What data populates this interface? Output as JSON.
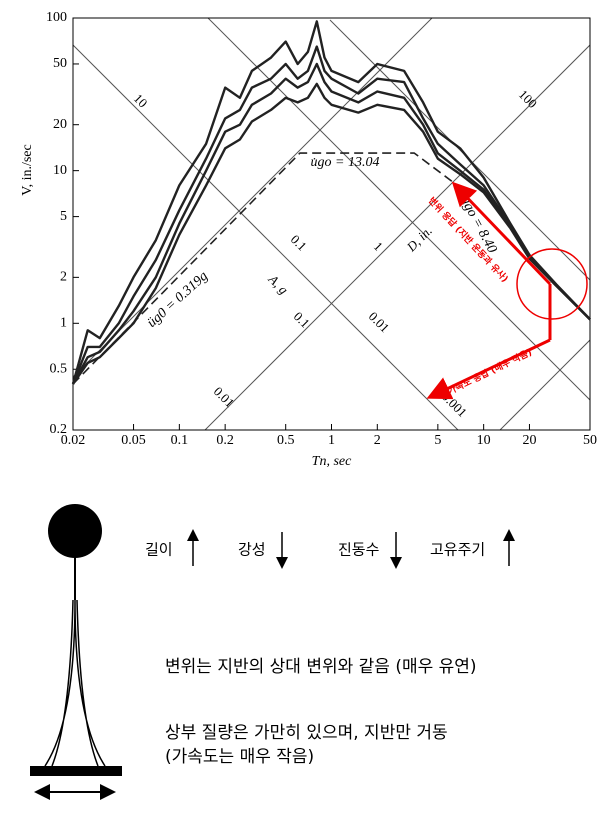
{
  "chart_data": {
    "type": "line",
    "xlog": true,
    "ylog": true,
    "xlabel": "Tn, sec",
    "ylabel": "V, in./sec",
    "xlim": [
      0.02,
      50
    ],
    "ylim": [
      0.2,
      100
    ],
    "xticks": [
      0.02,
      0.05,
      0.1,
      0.2,
      0.5,
      1,
      2,
      5,
      10,
      20,
      50
    ],
    "yticks": [
      0.2,
      0.5,
      1,
      2,
      5,
      10,
      20,
      50,
      100
    ],
    "series": [
      {
        "color": "#222222",
        "line_style": "solid",
        "x": [
          0.02,
          0.025,
          0.03,
          0.04,
          0.05,
          0.07,
          0.1,
          0.15,
          0.2,
          0.25,
          0.3,
          0.4,
          0.5,
          0.6,
          0.7,
          0.8,
          0.9,
          1,
          1.5,
          2,
          3,
          4,
          5,
          7,
          10,
          15,
          20,
          30,
          50
        ],
        "values": [
          0.4,
          0.9,
          0.8,
          1.3,
          2.0,
          3.5,
          8,
          15,
          35,
          30,
          45,
          55,
          70,
          50,
          60,
          95,
          55,
          45,
          38,
          50,
          45,
          28,
          18,
          14,
          9,
          4.5,
          2.8,
          1.8,
          1.06
        ]
      },
      {
        "color": "#222222",
        "line_style": "solid",
        "x": [
          0.02,
          0.025,
          0.03,
          0.04,
          0.05,
          0.07,
          0.1,
          0.15,
          0.2,
          0.25,
          0.3,
          0.4,
          0.5,
          0.6,
          0.7,
          0.8,
          0.9,
          1,
          1.5,
          2,
          3,
          4,
          5,
          7,
          10,
          15,
          20,
          30,
          50
        ],
        "values": [
          0.4,
          0.7,
          0.7,
          1.0,
          1.5,
          2.6,
          5.5,
          12,
          22,
          25,
          35,
          40,
          50,
          40,
          45,
          65,
          45,
          40,
          32,
          40,
          38,
          22,
          15,
          11,
          8,
          4.4,
          2.7,
          1.78,
          1.06
        ]
      },
      {
        "color": "#222222",
        "line_style": "solid",
        "x": [
          0.02,
          0.025,
          0.03,
          0.04,
          0.05,
          0.07,
          0.1,
          0.15,
          0.2,
          0.25,
          0.3,
          0.4,
          0.5,
          0.6,
          0.7,
          0.8,
          0.9,
          1,
          1.5,
          2,
          3,
          4,
          5,
          7,
          10,
          15,
          20,
          30,
          50
        ],
        "values": [
          0.4,
          0.6,
          0.65,
          0.9,
          1.2,
          2.0,
          4.5,
          10,
          18,
          20,
          27,
          32,
          40,
          35,
          38,
          50,
          38,
          33,
          28,
          33,
          30,
          20,
          13,
          10,
          7.5,
          4.3,
          2.7,
          1.77,
          1.06
        ]
      },
      {
        "color": "#222222",
        "line_style": "solid",
        "x": [
          0.02,
          0.025,
          0.03,
          0.04,
          0.05,
          0.07,
          0.1,
          0.15,
          0.2,
          0.25,
          0.3,
          0.4,
          0.5,
          0.6,
          0.7,
          0.8,
          0.9,
          1,
          1.5,
          2,
          3,
          4,
          5,
          7,
          10,
          15,
          20,
          30,
          50
        ],
        "values": [
          0.4,
          0.55,
          0.6,
          0.8,
          1.0,
          1.7,
          3.8,
          8,
          14,
          16,
          21,
          25,
          30,
          28,
          30,
          37,
          30,
          27,
          24,
          27,
          25,
          18,
          12,
          9.5,
          7.2,
          4.2,
          2.65,
          1.76,
          1.06
        ]
      },
      {
        "color": "#222222",
        "line_style": "dashed",
        "x": [
          0.02,
          0.62,
          3.5,
          6.3
        ],
        "values": [
          0.4,
          13.04,
          13.04,
          8.4
        ]
      }
    ],
    "annotations": [
      "u̇go = 13.04",
      "ugo = 8.40",
      "üg0 = 0.319g"
    ],
    "d_axis_label": "D, in.",
    "a_axis_label": "A, g",
    "d_line_labels": [
      "10",
      "1",
      "0.01",
      "0.001",
      "100"
    ],
    "a_line_labels": [
      "0.1",
      "0.1",
      "0.01"
    ]
  },
  "callouts": {
    "displacement": "변위 응답 (지반 운동과 유사)",
    "acceleration": "가속도 응답 (매우 작음)"
  },
  "properties": [
    {
      "label": "길이",
      "direction": "up"
    },
    {
      "label": "강성",
      "direction": "down"
    },
    {
      "label": "진동수",
      "direction": "down"
    },
    {
      "label": "고유주기",
      "direction": "up"
    }
  ],
  "notes": [
    "변위는 지반의 상대 변위와 같음 (매우 유연)",
    "상부 질량은 가만히 있으며, 지반만 거동",
    "(가속도는 매우 작음)"
  ]
}
